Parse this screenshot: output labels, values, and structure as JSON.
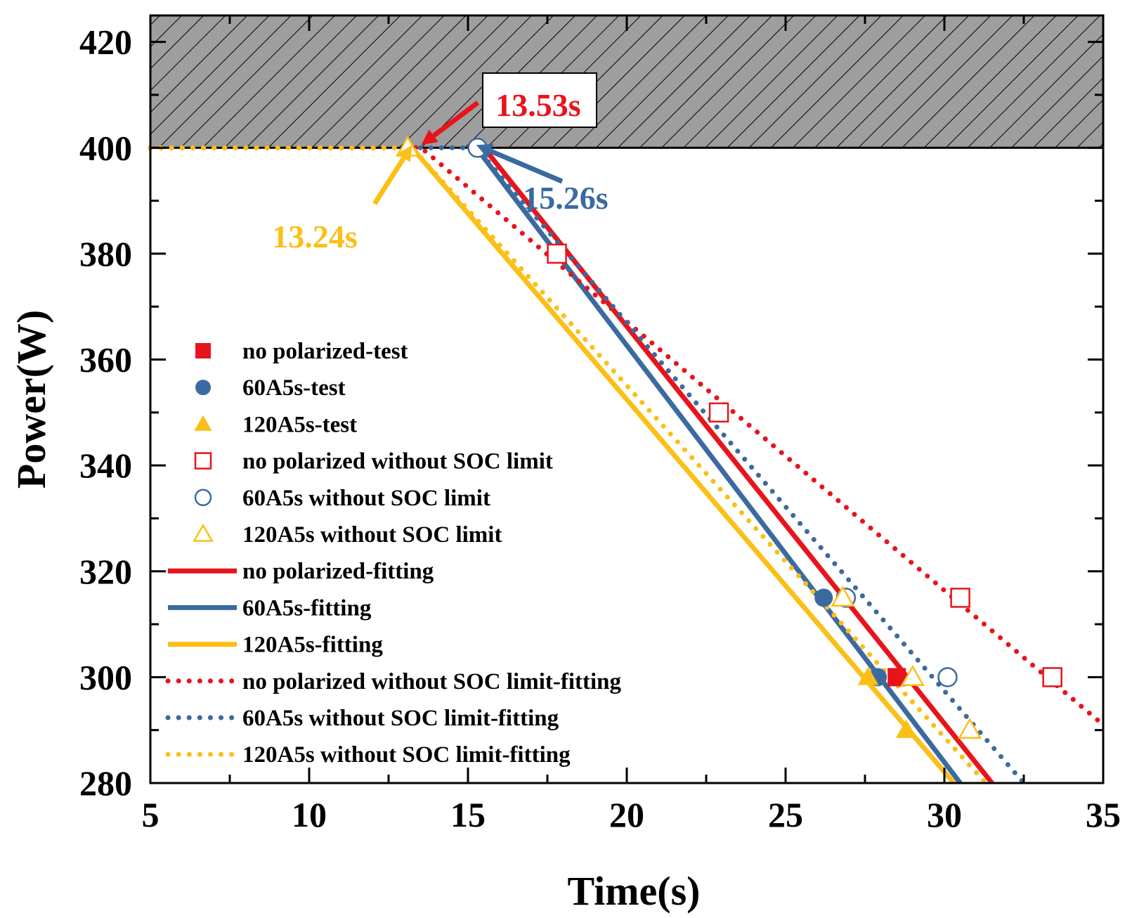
{
  "chart_data": {
    "type": "line",
    "xlabel": "Time(s)",
    "ylabel": "Power(W)",
    "xlim": [
      5,
      35
    ],
    "ylim": [
      280,
      425
    ],
    "x_ticks": [
      5,
      10,
      15,
      20,
      25,
      30,
      35
    ],
    "y_ticks": [
      280,
      300,
      320,
      340,
      360,
      380,
      400,
      420
    ],
    "shaded_region": {
      "label": "limit region",
      "y_from": 400,
      "y_to": 425,
      "color": "#9e9e9e"
    },
    "colors": {
      "red": "#e8141b",
      "blue": "#3b6aa0",
      "yellow": "#fbbf17"
    },
    "series": [
      {
        "name": "no polarized-test",
        "style": "marker",
        "marker": "square-filled",
        "color": "#e8141b",
        "points": [
          [
            28.5,
            300
          ]
        ]
      },
      {
        "name": "60A5s-test",
        "style": "marker",
        "marker": "circle-filled",
        "color": "#3b6aa0",
        "points": [
          [
            26.2,
            315
          ],
          [
            27.9,
            300
          ]
        ]
      },
      {
        "name": "120A5s-test",
        "style": "marker",
        "marker": "triangle-filled",
        "color": "#fbbf17",
        "points": [
          [
            27.6,
            300
          ],
          [
            28.8,
            290
          ]
        ]
      },
      {
        "name": "no polarized without SOC limit",
        "style": "marker",
        "marker": "square-open",
        "color": "#e8141b",
        "points": [
          [
            17.8,
            380
          ],
          [
            22.9,
            350
          ],
          [
            30.5,
            315
          ],
          [
            33.4,
            300
          ]
        ]
      },
      {
        "name": "60A5s without SOC limit",
        "style": "marker",
        "marker": "circle-open",
        "color": "#3b6aa0",
        "points": [
          [
            15.3,
            400
          ],
          [
            26.9,
            315
          ],
          [
            30.1,
            300
          ]
        ]
      },
      {
        "name": "120A5s without SOC limit",
        "style": "marker",
        "marker": "triangle-open",
        "color": "#fbbf17",
        "points": [
          [
            13.1,
            400
          ],
          [
            26.8,
            315
          ],
          [
            29.0,
            300
          ],
          [
            30.8,
            290
          ]
        ]
      },
      {
        "name": "no polarized-fitting",
        "style": "solid",
        "color": "#e8141b",
        "points": [
          [
            15.5,
            400
          ],
          [
            31.5,
            280
          ]
        ]
      },
      {
        "name": "60A5s-fitting",
        "style": "solid",
        "color": "#3b6aa0",
        "points": [
          [
            15.26,
            400
          ],
          [
            30.5,
            280
          ]
        ]
      },
      {
        "name": "120A5s-fitting",
        "style": "solid",
        "color": "#fbbf17",
        "points": [
          [
            13.24,
            400
          ],
          [
            30.3,
            280
          ]
        ]
      },
      {
        "name": "no polarized without SOC limit-fitting",
        "style": "dotted",
        "color": "#e8141b",
        "points": [
          [
            5,
            400
          ],
          [
            13.53,
            400
          ],
          [
            35,
            291
          ]
        ]
      },
      {
        "name": "60A5s without SOC limit-fitting",
        "style": "dotted",
        "color": "#3b6aa0",
        "points": [
          [
            13.5,
            400
          ],
          [
            15.26,
            400
          ],
          [
            32.5,
            280
          ]
        ]
      },
      {
        "name": "120A5s without SOC limit-fitting",
        "style": "dotted",
        "color": "#fbbf17",
        "points": [
          [
            5,
            400
          ],
          [
            13.24,
            400
          ],
          [
            31.3,
            280
          ]
        ]
      }
    ],
    "annotations": [
      {
        "text": "13.53s",
        "color": "#e8141b",
        "x": 13.53,
        "y": 400,
        "boxed": true
      },
      {
        "text": "15.26s",
        "color": "#3b6aa0",
        "x": 15.26,
        "y": 400,
        "boxed": false
      },
      {
        "text": "13.24s",
        "color": "#fbbf17",
        "x": 13.24,
        "y": 400,
        "boxed": false
      }
    ]
  }
}
